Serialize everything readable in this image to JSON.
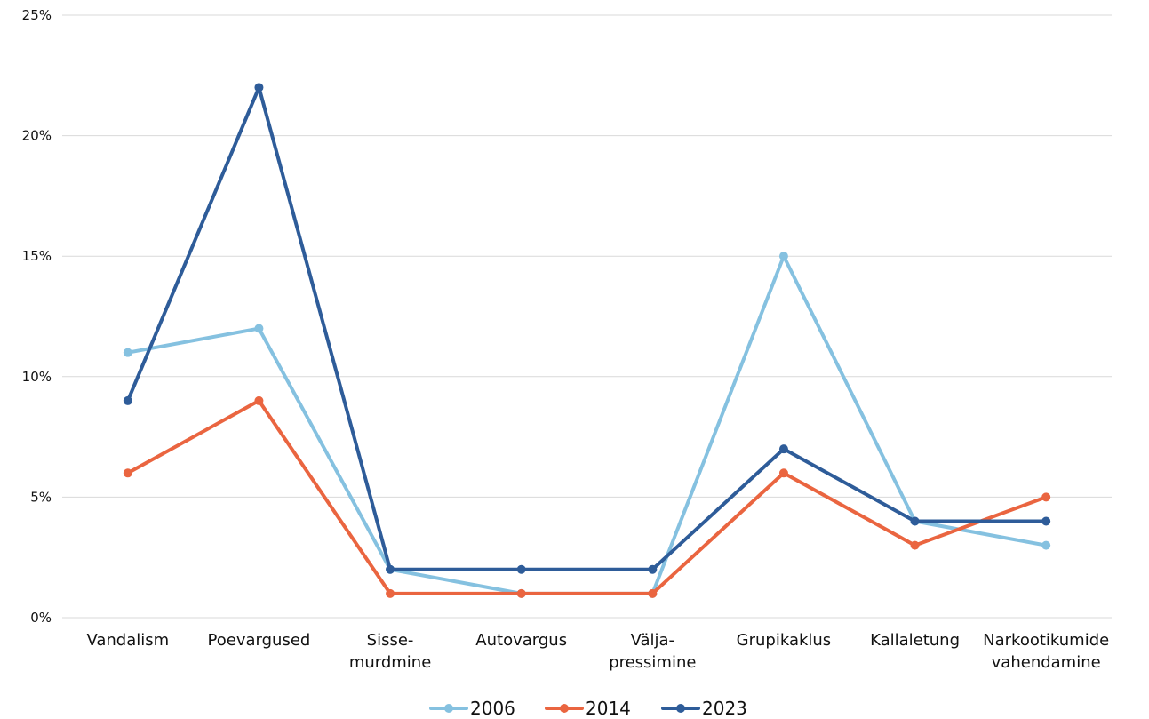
{
  "chart_data": {
    "type": "line",
    "categories": [
      [
        "Vandalism"
      ],
      [
        "Poevargused"
      ],
      [
        "Sisse-",
        "murdmine"
      ],
      [
        "Autovargus"
      ],
      [
        "Välja-",
        "pressimine"
      ],
      [
        "Grupikaklus"
      ],
      [
        "Kallaletung"
      ],
      [
        "Narkootikumide",
        "vahendamine"
      ]
    ],
    "series": [
      {
        "name": "2006",
        "color": "#85c1e0",
        "values": [
          11,
          12,
          2,
          1,
          1,
          15,
          4,
          3
        ]
      },
      {
        "name": "2014",
        "color": "#ea6540",
        "values": [
          6,
          9,
          1,
          1,
          1,
          6,
          3,
          5
        ]
      },
      {
        "name": "2023",
        "color": "#2e5c99",
        "values": [
          9,
          22,
          2,
          2,
          2,
          7,
          4,
          4
        ]
      }
    ],
    "y_ticks": [
      "0%",
      "5%",
      "10%",
      "15%",
      "20%",
      "25%"
    ],
    "ylim": [
      0,
      25
    ],
    "grid": true,
    "legend_position": "bottom-center"
  }
}
